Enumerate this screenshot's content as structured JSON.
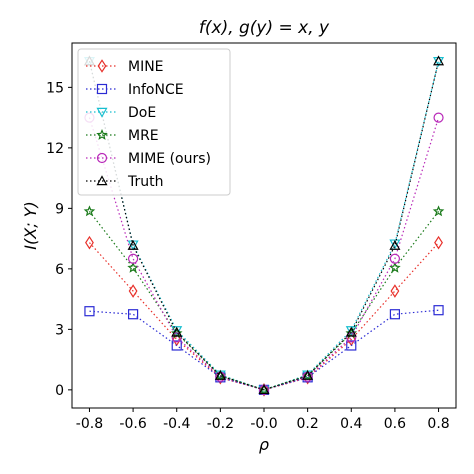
{
  "chart_data": {
    "type": "line",
    "title": "f(x), g(y) = x, y",
    "xlabel": "ρ",
    "ylabel": "I(X; Y)",
    "x": [
      -0.8,
      -0.6,
      -0.4,
      -0.2,
      0.0,
      0.2,
      0.4,
      0.6,
      0.8
    ],
    "x_tick_labels": [
      "-0.8",
      "-0.6",
      "-0.4",
      "-0.2",
      "-0.0",
      "0.2",
      "0.4",
      "0.6",
      "0.8"
    ],
    "y_ticks": [
      0,
      3,
      6,
      9,
      12,
      15
    ],
    "y_tick_labels": [
      "0",
      "3",
      "6",
      "9",
      "12",
      "15"
    ],
    "xlim": [
      -0.88,
      0.88
    ],
    "ylim": [
      -0.9,
      17.2
    ],
    "grid": false,
    "legend_position": "top-left",
    "series": [
      {
        "name": "MINE",
        "marker": "diamond",
        "color": "#e8302a",
        "values": [
          7.3,
          4.9,
          2.5,
          0.6,
          0.0,
          0.6,
          2.5,
          4.9,
          7.3
        ]
      },
      {
        "name": "InfoNCE",
        "marker": "square",
        "color": "#2b2bd4",
        "values": [
          3.9,
          3.75,
          2.2,
          0.62,
          0.0,
          0.62,
          2.2,
          3.75,
          3.95
        ]
      },
      {
        "name": "DoE",
        "marker": "triangle-down",
        "color": "#17becf",
        "values": [
          16.3,
          7.2,
          2.95,
          0.75,
          0.0,
          0.75,
          2.95,
          7.25,
          16.3
        ]
      },
      {
        "name": "MRE",
        "marker": "star",
        "color": "#1a7a1a",
        "values": [
          8.85,
          6.05,
          2.8,
          0.7,
          0.0,
          0.7,
          2.8,
          6.05,
          8.85
        ]
      },
      {
        "name": "MIME (ours)",
        "marker": "circle",
        "color": "#b828b8",
        "values": [
          13.5,
          6.5,
          2.6,
          0.65,
          0.0,
          0.65,
          2.6,
          6.5,
          13.5
        ]
      },
      {
        "name": "Truth",
        "marker": "triangle-up",
        "color": "#000000",
        "values": [
          16.3,
          7.15,
          2.85,
          0.7,
          0.0,
          0.7,
          2.85,
          7.15,
          16.3
        ]
      }
    ]
  }
}
